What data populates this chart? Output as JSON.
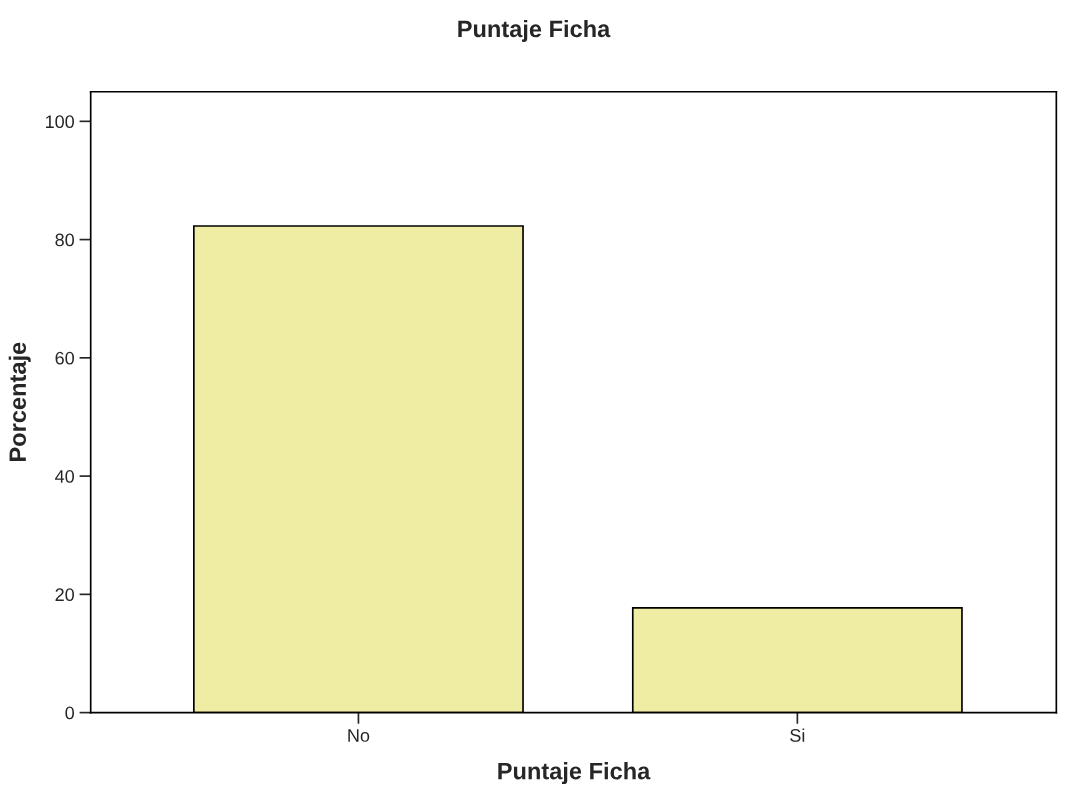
{
  "chart_data": {
    "type": "bar",
    "title": "Puntaje Ficha",
    "xlabel": "Puntaje Ficha",
    "ylabel": "Porcentaje",
    "categories": [
      "No",
      "Si"
    ],
    "values": [
      82.3,
      17.7
    ],
    "color": "#efeca4",
    "ylim": [
      0,
      105
    ],
    "yticks": [
      0,
      20,
      40,
      60,
      80,
      100
    ],
    "grid": false,
    "legend": false
  }
}
